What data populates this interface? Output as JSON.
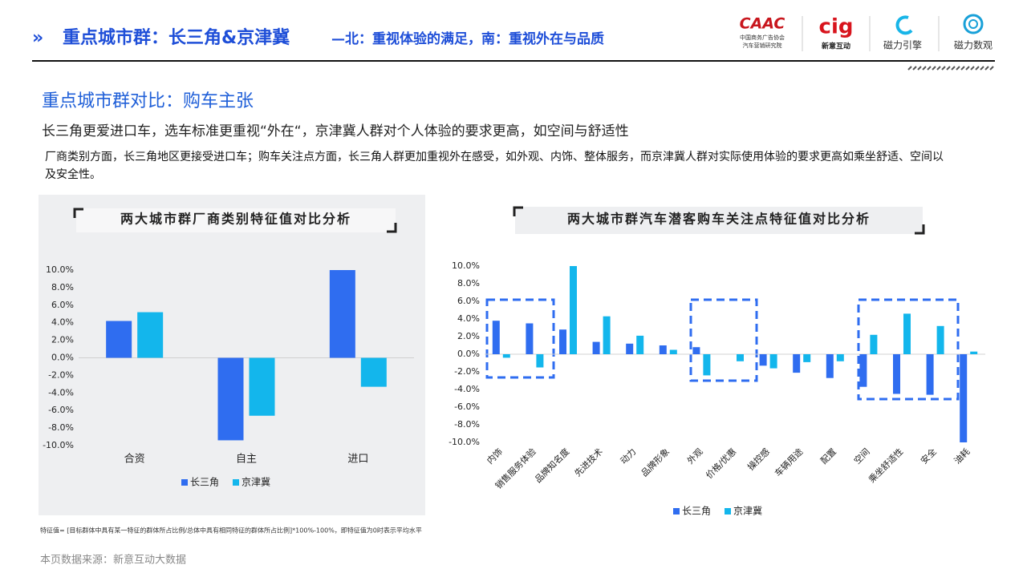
{
  "header": {
    "title": "重点城市群：长三角&京津冀",
    "title_suffix": "—北：重视体验的满足，南：重视外在与品质",
    "logos": [
      "CAAC",
      "中国商务广告协会",
      "汽车营销研究院",
      "cig",
      "新意互动",
      "磁力引擎",
      "磁力数观"
    ]
  },
  "section_title": "重点城市群对比：购车主张",
  "lead": "长三角更爱进口车，选车标准更重视“外在“，京津冀人群对个人体验的要求更高，如空间与舒适性",
  "body": "厂商类别方面，长三角地区更接受进口车；购车关注点方面，长三角人群更加重视外在感受，如外观、内饰、整体服务，而京津冀人群对实际使用体验的要求更高如乘坐舒适、空间以及安全性。",
  "footnote": "特征值= [目标群体中具有某一特征的群体所占比例/总体中具有相同特征的群体所占比例]*100%-100%，即特征值为0时表示平均水平",
  "source": "本页数据来源：新意互动大数据",
  "chart_data": [
    {
      "type": "bar",
      "title": "两大城市群厂商类别特征值对比分析",
      "categories": [
        "合资",
        "自主",
        "进口"
      ],
      "series": [
        {
          "name": "长三角",
          "color": "#2f6df0",
          "values": [
            4.2,
            -9.4,
            10.0
          ]
        },
        {
          "name": "京津冀",
          "color": "#13b6ec",
          "values": [
            5.2,
            -6.6,
            -3.3
          ]
        }
      ],
      "ylim": [
        -10,
        10
      ],
      "yticks": [
        {
          "value": -10,
          "label": "-10.0%"
        },
        {
          "value": -8,
          "label": "-8.0%"
        },
        {
          "value": -6,
          "label": "-6.0%"
        },
        {
          "value": -4,
          "label": "-4.0%"
        },
        {
          "value": -2,
          "label": "-2.0%"
        },
        {
          "value": 0,
          "label": "0.0%"
        },
        {
          "value": 2,
          "label": "2.0%"
        },
        {
          "value": 4,
          "label": "4.0%"
        },
        {
          "value": 6,
          "label": "6.0%"
        },
        {
          "value": 8,
          "label": "8.0%"
        },
        {
          "value": 10,
          "label": "10.0%"
        }
      ],
      "legend": "bottom"
    },
    {
      "type": "bar",
      "title": "两大城市群汽车潜客购车关注点特征值对比分析",
      "categories": [
        "内饰",
        "销售服务体验",
        "品牌知名度",
        "先进技术",
        "动力",
        "品牌形象",
        "外观",
        "价格/优惠",
        "操控感",
        "车辆用途",
        "配置",
        "空间",
        "乘坐舒适性",
        "安全",
        "油耗"
      ],
      "series": [
        {
          "name": "长三角",
          "color": "#2f6df0",
          "values": [
            3.8,
            3.5,
            2.8,
            1.4,
            1.2,
            1.0,
            0.8,
            0.0,
            -1.3,
            -2.1,
            -2.7,
            -3.7,
            -4.5,
            -4.6,
            -10.0
          ]
        },
        {
          "name": "京津冀",
          "color": "#13b6ec",
          "values": [
            -0.4,
            -1.5,
            10.0,
            4.3,
            2.1,
            0.5,
            -2.4,
            -0.8,
            -1.6,
            -0.9,
            -0.8,
            2.2,
            4.6,
            3.2,
            0.3
          ]
        }
      ],
      "ylim": [
        -10,
        10
      ],
      "yticks": [
        {
          "value": -10,
          "label": "-10.0%"
        },
        {
          "value": -8,
          "label": "-8.0%"
        },
        {
          "value": -6,
          "label": "-6.0%"
        },
        {
          "value": -4,
          "label": "-4.0%"
        },
        {
          "value": -2,
          "label": "-2.0%"
        },
        {
          "value": 0,
          "label": "0.0%"
        },
        {
          "value": 2,
          "label": "2.0%"
        },
        {
          "value": 4,
          "label": "4.0%"
        },
        {
          "value": 6,
          "label": "6.0%"
        },
        {
          "value": 8,
          "label": "8.0%"
        },
        {
          "value": 10,
          "label": "10.0%"
        }
      ],
      "legend": "bottom"
    }
  ]
}
